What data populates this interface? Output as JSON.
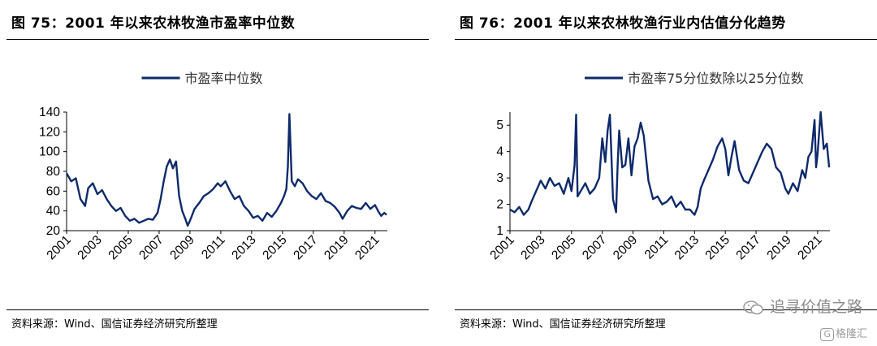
{
  "left_panel": {
    "title": "图 75：2001 年以来农林牧渔市盈率中位数",
    "source": "资料来源：Wind、国信证券经济研究所整理"
  },
  "right_panel": {
    "title": "图 76：2001 年以来农林牧渔行业内估值分化趋势",
    "source": "资料来源：Wind、国信证券经济研究所整理"
  },
  "watermark": {
    "text": "追寻价值之路",
    "icon": "wechat-icon"
  },
  "logo": {
    "badge": "G",
    "text": "格隆汇"
  },
  "colors": {
    "line": "#0d2a6b",
    "axis": "#000000"
  },
  "chart_data": [
    {
      "type": "line",
      "legend_position": "top-center",
      "xlim": [
        2001,
        2021.8
      ],
      "ylim": [
        20,
        140
      ],
      "yticks": [
        20,
        40,
        60,
        80,
        100,
        120,
        140
      ],
      "xticks": [
        "2001",
        "2003",
        "2005",
        "2007",
        "2009",
        "2011",
        "2013",
        "2015",
        "2017",
        "2019",
        "2021"
      ],
      "grid": false,
      "series": [
        {
          "name": "市盈率中位数",
          "x": [
            2001.0,
            2001.3,
            2001.6,
            2001.9,
            2002.2,
            2002.4,
            2002.7,
            2003.0,
            2003.3,
            2003.6,
            2003.9,
            2004.2,
            2004.5,
            2004.8,
            2005.1,
            2005.4,
            2005.7,
            2006.0,
            2006.3,
            2006.6,
            2006.9,
            2007.1,
            2007.3,
            2007.5,
            2007.7,
            2007.9,
            2008.1,
            2008.3,
            2008.5,
            2008.7,
            2008.85,
            2009.0,
            2009.3,
            2009.6,
            2009.9,
            2010.2,
            2010.5,
            2010.8,
            2011.0,
            2011.3,
            2011.6,
            2011.9,
            2012.2,
            2012.5,
            2012.8,
            2013.1,
            2013.4,
            2013.7,
            2014.0,
            2014.3,
            2014.6,
            2014.9,
            2015.1,
            2015.25,
            2015.35,
            2015.45,
            2015.6,
            2015.8,
            2016.0,
            2016.3,
            2016.6,
            2016.9,
            2017.2,
            2017.5,
            2017.8,
            2018.1,
            2018.4,
            2018.7,
            2018.9,
            2019.2,
            2019.5,
            2019.8,
            2020.1,
            2020.4,
            2020.7,
            2021.0,
            2021.2,
            2021.4,
            2021.6,
            2021.75
          ],
          "y": [
            78,
            70,
            73,
            52,
            45,
            63,
            68,
            57,
            61,
            52,
            45,
            40,
            43,
            35,
            30,
            32,
            28,
            30,
            32,
            31,
            38,
            52,
            70,
            85,
            92,
            83,
            90,
            55,
            40,
            32,
            25,
            30,
            42,
            48,
            55,
            58,
            62,
            68,
            65,
            70,
            60,
            52,
            55,
            45,
            40,
            33,
            35,
            30,
            38,
            34,
            40,
            48,
            55,
            62,
            85,
            138,
            70,
            65,
            72,
            68,
            60,
            55,
            52,
            58,
            50,
            48,
            44,
            38,
            32,
            40,
            45,
            43,
            42,
            48,
            42,
            46,
            40,
            35,
            38,
            36
          ]
        }
      ]
    },
    {
      "type": "line",
      "legend_position": "top-center",
      "xlim": [
        2001,
        2021.8
      ],
      "ylim": [
        1,
        5.5
      ],
      "yticks": [
        1,
        2,
        3,
        4,
        5
      ],
      "xticks": [
        "2001",
        "2003",
        "2005",
        "2007",
        "2009",
        "2011",
        "2013",
        "2015",
        "2017",
        "2019",
        "2021"
      ],
      "grid": false,
      "series": [
        {
          "name": "市盈率75分位数除以25分位数",
          "x": [
            2001.0,
            2001.3,
            2001.6,
            2001.9,
            2002.2,
            2002.4,
            2002.7,
            2003.0,
            2003.3,
            2003.6,
            2003.9,
            2004.2,
            2004.5,
            2004.8,
            2005.0,
            2005.2,
            2005.3,
            2005.4,
            2005.6,
            2005.9,
            2006.2,
            2006.5,
            2006.8,
            2007.0,
            2007.2,
            2007.35,
            2007.5,
            2007.7,
            2007.9,
            2008.0,
            2008.1,
            2008.3,
            2008.5,
            2008.7,
            2008.9,
            2009.1,
            2009.3,
            2009.5,
            2009.7,
            2010.0,
            2010.3,
            2010.6,
            2010.9,
            2011.2,
            2011.5,
            2011.8,
            2012.1,
            2012.4,
            2012.7,
            2013.0,
            2013.2,
            2013.4,
            2013.6,
            2013.9,
            2014.2,
            2014.5,
            2014.8,
            2015.0,
            2015.2,
            2015.4,
            2015.6,
            2015.9,
            2016.2,
            2016.5,
            2016.8,
            2017.1,
            2017.4,
            2017.7,
            2018.0,
            2018.3,
            2018.6,
            2018.9,
            2019.1,
            2019.4,
            2019.7,
            2020.0,
            2020.2,
            2020.4,
            2020.6,
            2020.8,
            2020.9,
            2021.0,
            2021.2,
            2021.4,
            2021.6,
            2021.75
          ],
          "y": [
            1.8,
            1.7,
            1.9,
            1.6,
            1.8,
            2.1,
            2.5,
            2.9,
            2.6,
            3.0,
            2.7,
            2.8,
            2.4,
            3.0,
            2.5,
            3.5,
            5.4,
            2.3,
            2.5,
            2.8,
            2.4,
            2.6,
            3.0,
            4.5,
            3.6,
            4.8,
            5.4,
            2.2,
            1.7,
            3.5,
            4.8,
            3.4,
            3.5,
            4.5,
            3.1,
            4.2,
            4.5,
            5.1,
            4.6,
            2.9,
            2.2,
            2.3,
            2.0,
            2.1,
            2.3,
            1.9,
            2.1,
            1.8,
            1.8,
            1.6,
            1.9,
            2.6,
            2.9,
            3.3,
            3.7,
            4.2,
            4.5,
            4.1,
            3.1,
            3.8,
            4.4,
            3.3,
            2.9,
            2.8,
            3.2,
            3.6,
            4.0,
            4.3,
            4.1,
            3.4,
            3.2,
            2.6,
            2.4,
            2.8,
            2.5,
            3.3,
            3.0,
            3.8,
            4.0,
            5.2,
            3.4,
            3.9,
            5.5,
            4.1,
            4.3,
            3.4
          ]
        }
      ]
    }
  ]
}
